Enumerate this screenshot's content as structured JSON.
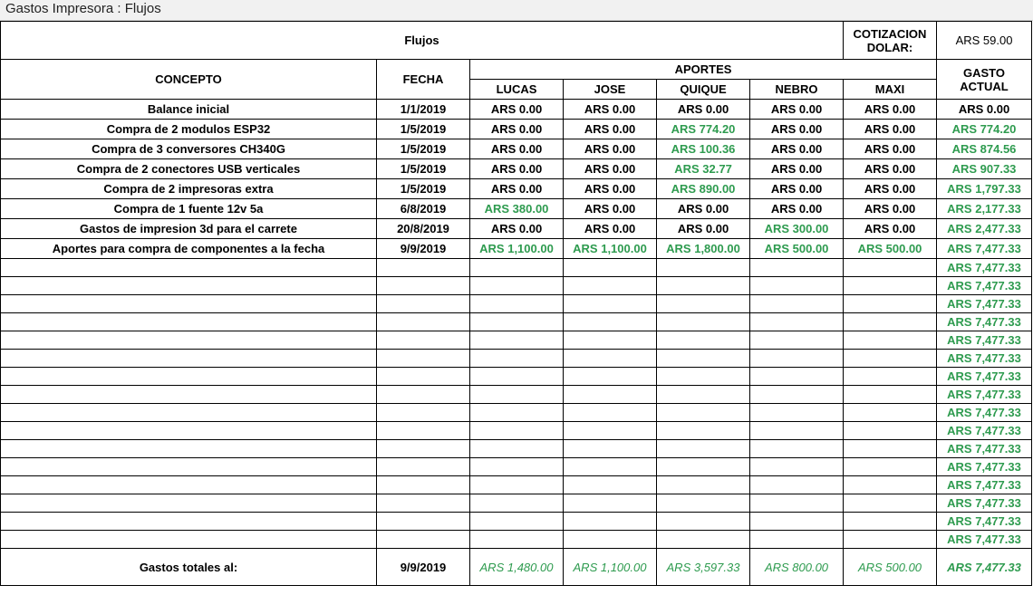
{
  "window": {
    "title": "Gastos Impresora : Flujos"
  },
  "sheet": {
    "title": "Flujos",
    "cotizacion_label_1": "COTIZACION",
    "cotizacion_label_2": "DOLAR:",
    "cotizacion_value": "ARS 59.00",
    "headers": {
      "concepto": "CONCEPTO",
      "fecha": "FECHA",
      "aportes": "APORTES",
      "gasto_1": "GASTO",
      "gasto_2": "ACTUAL",
      "people": [
        "LUCAS",
        "JOSE",
        "QUIQUE",
        "NEBRO",
        "MAXI"
      ]
    },
    "rows": [
      {
        "concepto": "Balance inicial",
        "fecha": "1/1/2019",
        "aportes": [
          "ARS 0.00",
          "ARS 0.00",
          "ARS 0.00",
          "ARS 0.00",
          "ARS 0.00"
        ],
        "gasto": "ARS 0.00"
      },
      {
        "concepto": "Compra de 2 modulos ESP32",
        "fecha": "1/5/2019",
        "aportes": [
          "ARS 0.00",
          "ARS 0.00",
          "ARS 774.20",
          "ARS 0.00",
          "ARS 0.00"
        ],
        "gasto": "ARS 774.20"
      },
      {
        "concepto": "Compra de 3 conversores CH340G",
        "fecha": "1/5/2019",
        "aportes": [
          "ARS 0.00",
          "ARS 0.00",
          "ARS 100.36",
          "ARS 0.00",
          "ARS 0.00"
        ],
        "gasto": "ARS 874.56"
      },
      {
        "concepto": "Compra de 2 conectores USB verticales",
        "fecha": "1/5/2019",
        "aportes": [
          "ARS 0.00",
          "ARS 0.00",
          "ARS 32.77",
          "ARS 0.00",
          "ARS 0.00"
        ],
        "gasto": "ARS 907.33"
      },
      {
        "concepto": "Compra de 2 impresoras extra",
        "fecha": "1/5/2019",
        "aportes": [
          "ARS 0.00",
          "ARS 0.00",
          "ARS 890.00",
          "ARS 0.00",
          "ARS 0.00"
        ],
        "gasto": "ARS 1,797.33"
      },
      {
        "concepto": "Compra de 1 fuente 12v 5a",
        "fecha": "6/8/2019",
        "aportes": [
          "ARS 380.00",
          "ARS 0.00",
          "ARS 0.00",
          "ARS 0.00",
          "ARS 0.00"
        ],
        "gasto": "ARS 2,177.33"
      },
      {
        "concepto": "Gastos de impresion 3d para el carrete",
        "fecha": "20/8/2019",
        "aportes": [
          "ARS 0.00",
          "ARS 0.00",
          "ARS 0.00",
          "ARS 300.00",
          "ARS 0.00"
        ],
        "gasto": "ARS 2,477.33"
      },
      {
        "concepto": "Aportes para compra de componentes a la fecha",
        "fecha": "9/9/2019",
        "aportes": [
          "ARS 1,100.00",
          "ARS 1,100.00",
          "ARS 1,800.00",
          "ARS 500.00",
          "ARS 500.00"
        ],
        "gasto": "ARS 7,477.33"
      }
    ],
    "empty_rows_gasto": [
      "ARS 7,477.33",
      "ARS 7,477.33",
      "ARS 7,477.33",
      "ARS 7,477.33",
      "ARS 7,477.33",
      "ARS 7,477.33",
      "ARS 7,477.33",
      "ARS 7,477.33",
      "ARS 7,477.33",
      "ARS 7,477.33",
      "ARS 7,477.33",
      "ARS 7,477.33",
      "ARS 7,477.33",
      "ARS 7,477.33",
      "ARS 7,477.33",
      "ARS 7,477.33"
    ],
    "totals": {
      "label": "Gastos totales al:",
      "fecha": "9/9/2019",
      "aportes": [
        "ARS 1,480.00",
        "ARS 1,100.00",
        "ARS 3,597.33",
        "ARS 800.00",
        "ARS 500.00"
      ],
      "gasto": "ARS 7,477.33"
    },
    "colors": {
      "positive_green": "#2e9b4f"
    }
  }
}
